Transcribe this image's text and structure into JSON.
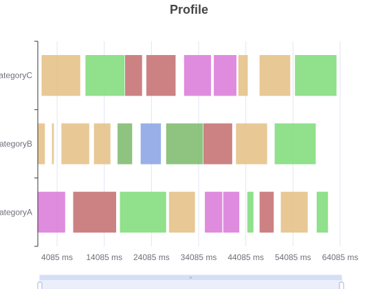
{
  "chart_data": {
    "type": "gantt",
    "title": "Profile",
    "xlabel": "",
    "ylabel": "",
    "x_unit": "ms",
    "xlim": [
      0,
      64085
    ],
    "x_ticks": [
      4085,
      14085,
      24085,
      34085,
      44085,
      54085,
      64085
    ],
    "categories": [
      "categoryA",
      "categoryB",
      "categoryC"
    ],
    "grid": "vertical",
    "colors": {
      "tan": "#e6c28a",
      "green": "#84dd80",
      "dark_red": "#c67375",
      "pink": "#dc7fdc",
      "blue": "#8ea6e6",
      "dark_green": "#82bc72"
    },
    "bars": [
      {
        "category": "categoryC",
        "start": 800,
        "end": 9000,
        "color": "tan"
      },
      {
        "category": "categoryC",
        "start": 10100,
        "end": 18400,
        "color": "green"
      },
      {
        "category": "categoryC",
        "start": 18500,
        "end": 22100,
        "color": "dark_red"
      },
      {
        "category": "categoryC",
        "start": 23000,
        "end": 29200,
        "color": "dark_red"
      },
      {
        "category": "categoryC",
        "start": 31000,
        "end": 36700,
        "color": "pink"
      },
      {
        "category": "categoryC",
        "start": 37300,
        "end": 42100,
        "color": "pink"
      },
      {
        "category": "categoryC",
        "start": 42500,
        "end": 44500,
        "color": "tan"
      },
      {
        "category": "categoryC",
        "start": 47000,
        "end": 53500,
        "color": "tan"
      },
      {
        "category": "categoryC",
        "start": 54500,
        "end": 63300,
        "color": "green"
      },
      {
        "category": "categoryB",
        "start": 0,
        "end": 1500,
        "color": "tan"
      },
      {
        "category": "categoryB",
        "start": 3000,
        "end": 3400,
        "color": "tan"
      },
      {
        "category": "categoryB",
        "start": 5000,
        "end": 10900,
        "color": "tan"
      },
      {
        "category": "categoryB",
        "start": 11900,
        "end": 15400,
        "color": "tan"
      },
      {
        "category": "categoryB",
        "start": 16900,
        "end": 20000,
        "color": "dark_green"
      },
      {
        "category": "categoryB",
        "start": 21800,
        "end": 26100,
        "color": "blue"
      },
      {
        "category": "categoryB",
        "start": 27200,
        "end": 35000,
        "color": "dark_green"
      },
      {
        "category": "categoryB",
        "start": 35100,
        "end": 41200,
        "color": "dark_red"
      },
      {
        "category": "categoryB",
        "start": 42000,
        "end": 48600,
        "color": "tan"
      },
      {
        "category": "categoryB",
        "start": 50200,
        "end": 58900,
        "color": "green"
      },
      {
        "category": "categoryA",
        "start": 0,
        "end": 5800,
        "color": "pink"
      },
      {
        "category": "categoryA",
        "start": 7500,
        "end": 16600,
        "color": "dark_red"
      },
      {
        "category": "categoryA",
        "start": 17400,
        "end": 27200,
        "color": "green"
      },
      {
        "category": "categoryA",
        "start": 27800,
        "end": 33300,
        "color": "tan"
      },
      {
        "category": "categoryA",
        "start": 35400,
        "end": 39100,
        "color": "pink"
      },
      {
        "category": "categoryA",
        "start": 39300,
        "end": 42700,
        "color": "pink"
      },
      {
        "category": "categoryA",
        "start": 44400,
        "end": 45700,
        "color": "green"
      },
      {
        "category": "categoryA",
        "start": 47000,
        "end": 50000,
        "color": "dark_red"
      },
      {
        "category": "categoryA",
        "start": 51500,
        "end": 57200,
        "color": "tan"
      },
      {
        "category": "categoryA",
        "start": 59100,
        "end": 61500,
        "color": "green"
      }
    ]
  },
  "zoom": {
    "start_percent": 0,
    "end_percent": 100
  }
}
